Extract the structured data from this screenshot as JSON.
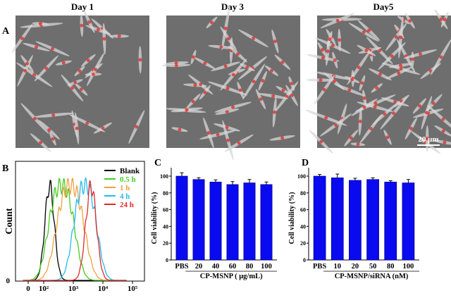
{
  "panel_labels": {
    "a": "A",
    "b": "B",
    "c": "C",
    "d": "D"
  },
  "panel_a": {
    "day_titles": [
      "Day 1",
      "Day 3",
      "Day5"
    ],
    "scale_bar_label": "20 μm",
    "overlay_color": "#e03030"
  },
  "chart_data": [
    {
      "type": "line",
      "panel": "B",
      "ylabel": "Count",
      "xlabel": "",
      "y_ticks": [
        "0"
      ],
      "x_ticks": [
        "0",
        "10²",
        "10³",
        "10⁴",
        "10⁵"
      ],
      "x_scale": "log",
      "legend_position": "top-right",
      "series": [
        {
          "name": "Blank",
          "color": "#000000",
          "peak_log10": 2.2,
          "width": 0.16
        },
        {
          "name": "0.5 h",
          "color": "#44cc22",
          "peak_log10": 2.6,
          "width": 0.42
        },
        {
          "name": "1 h",
          "color": "#f0a040",
          "peak_log10": 2.9,
          "width": 0.45
        },
        {
          "name": "4 h",
          "color": "#22bbee",
          "peak_log10": 3.4,
          "width": 0.38
        },
        {
          "name": "24 h",
          "color": "#e02a2a",
          "peak_log10": 3.6,
          "width": 0.18
        }
      ]
    },
    {
      "type": "bar",
      "panel": "C",
      "ylabel": "Cell viability (%)",
      "xlabel": "CP-MSNP ( μg/mL)",
      "ylim": [
        0,
        100
      ],
      "y_ticks": [
        "0",
        "20",
        "40",
        "60",
        "80",
        "100"
      ],
      "categories": [
        "PBS",
        "20",
        "40",
        "60",
        "80",
        "100"
      ],
      "values": [
        100,
        96,
        93,
        90,
        92,
        90
      ],
      "errors": [
        4,
        2,
        2.5,
        3.5,
        4,
        3
      ],
      "bar_color": "#0a0af0"
    },
    {
      "type": "bar",
      "panel": "D",
      "ylabel": "Cell viability (%)",
      "xlabel": "CP-MSNP/siRNA (nM)",
      "ylim": [
        0,
        100
      ],
      "y_ticks": [
        "0",
        "20",
        "40",
        "60",
        "80",
        "100"
      ],
      "categories": [
        "PBS",
        "10",
        "20",
        "50",
        "80",
        "100"
      ],
      "values": [
        100,
        98,
        95,
        96,
        93,
        92
      ],
      "errors": [
        2,
        4.5,
        2.5,
        2,
        1.5,
        4
      ],
      "bar_color": "#0a0af0"
    }
  ]
}
